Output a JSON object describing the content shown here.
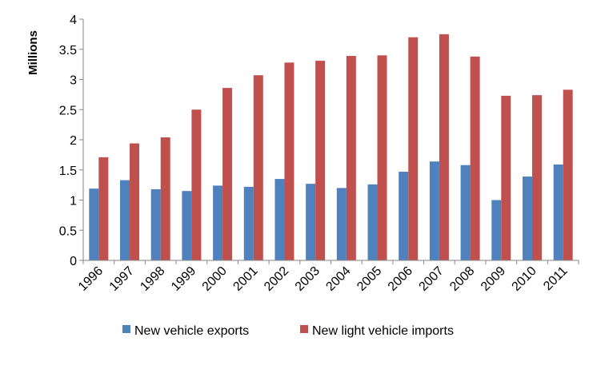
{
  "chart_data": {
    "type": "bar",
    "title": "",
    "xlabel": "",
    "ylabel": "Millions",
    "ylim": [
      0,
      4
    ],
    "yticks": [
      0,
      0.5,
      1,
      1.5,
      2,
      2.5,
      3,
      3.5,
      4
    ],
    "ytick_labels": [
      "0",
      "0.5",
      "1",
      "1.5",
      "2",
      "2.5",
      "3",
      "3.5",
      "4"
    ],
    "grid": false,
    "legend_position": "bottom",
    "categories": [
      "1996",
      "1997",
      "1998",
      "1999",
      "2000",
      "2001",
      "2002",
      "2003",
      "2004",
      "2005",
      "2006",
      "2007",
      "2008",
      "2009",
      "2010",
      "2011"
    ],
    "series": [
      {
        "name": "New vehicle exports",
        "color": "#4F81BD",
        "values": [
          1.19,
          1.33,
          1.18,
          1.15,
          1.24,
          1.22,
          1.35,
          1.27,
          1.2,
          1.26,
          1.47,
          1.64,
          1.58,
          1.0,
          1.39,
          1.59
        ]
      },
      {
        "name": "New light vehicle imports",
        "color": "#C0504D",
        "values": [
          1.71,
          1.94,
          2.04,
          2.5,
          2.86,
          3.07,
          3.28,
          3.31,
          3.39,
          3.4,
          3.7,
          3.75,
          3.38,
          2.73,
          2.74,
          2.83
        ]
      }
    ]
  }
}
